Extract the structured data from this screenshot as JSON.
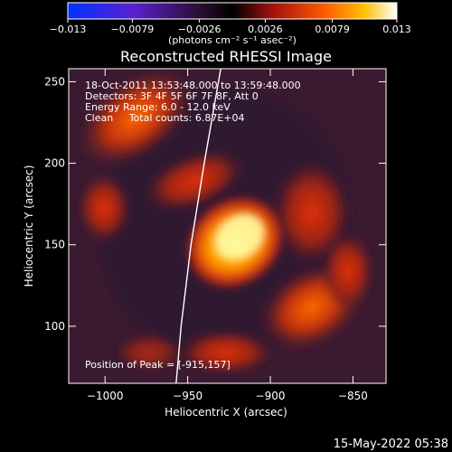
{
  "chart_data": {
    "type": "heatmap",
    "title": "Reconstructed RHESSI Image",
    "xlabel": "Heliocentric X (arcsec)",
    "ylabel": "Heliocentric Y (arcsec)",
    "xlim": [
      -1022,
      -830
    ],
    "ylim": [
      65,
      258
    ],
    "xticks": [
      -1000,
      -950,
      -900,
      -850
    ],
    "xtick_labels": [
      "−1000",
      "−950",
      "−900",
      "−850"
    ],
    "yticks": [
      100,
      150,
      200,
      250
    ],
    "ytick_labels": [
      "100",
      "150",
      "200",
      "250"
    ],
    "colorbar": {
      "ticks": [
        -0.013,
        -0.0079,
        -0.0026,
        0.0026,
        0.0079,
        0.013
      ],
      "tick_labels": [
        "−0.013",
        "−0.0079",
        "−0.0026",
        "0.0026",
        "0.0079",
        "0.013"
      ],
      "units": "(photons cm⁻² s⁻¹ asec⁻²)",
      "range": [
        -0.013,
        0.013
      ],
      "colormap": "blue-purple-black-red-orange-yellow-white"
    },
    "annotations": [
      "18-Oct-2011 13:53:48.000 to 13:59:48.000",
      "Detectors: 3F 4F 5F 6F 7F 8F, Att 0",
      "Energy Range: 6.0 - 12.0 keV",
      "Clean     Total counts: 6.87E+04"
    ],
    "peak_label": "Position of Peak = [-915,157]",
    "peak": {
      "x": -915,
      "y": 157
    },
    "limb_curve": [
      [
        -957,
        65
      ],
      [
        -954,
        100
      ],
      [
        -948,
        150
      ],
      [
        -940,
        200
      ],
      [
        -930,
        258
      ]
    ],
    "timestamp": "15-May-2022 05:38"
  }
}
